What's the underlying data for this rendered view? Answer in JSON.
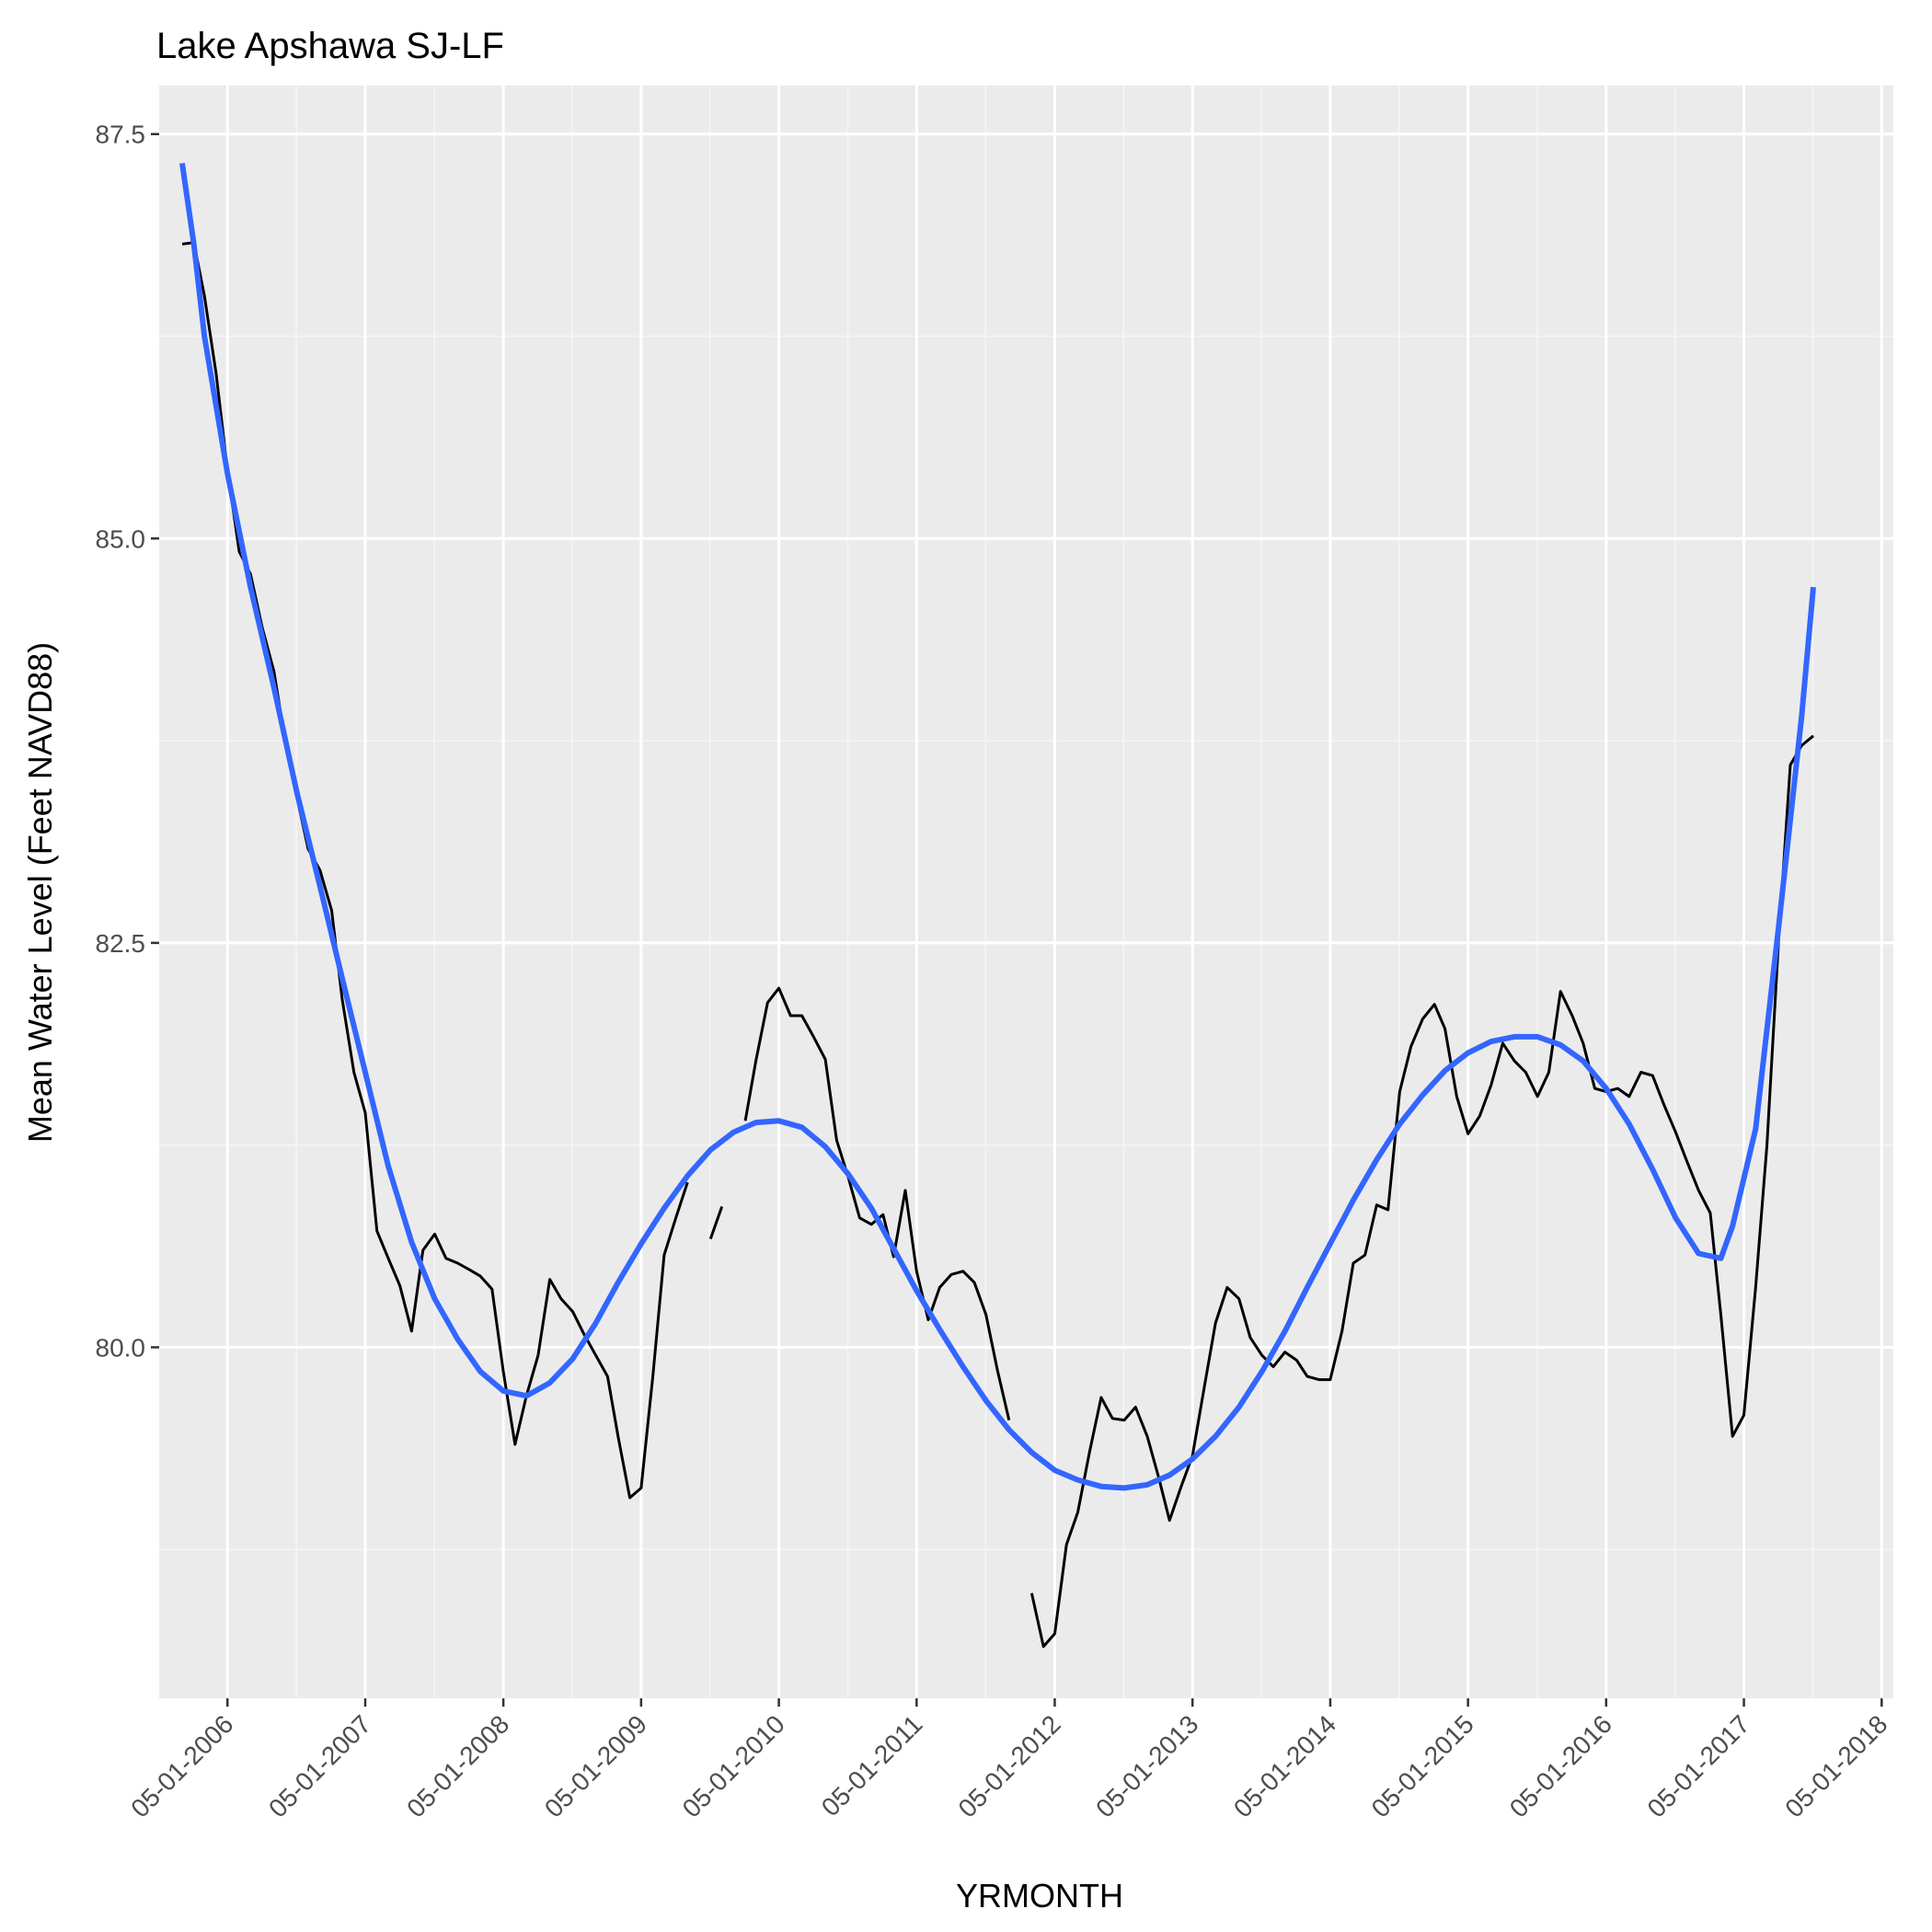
{
  "chart_data": {
    "type": "line",
    "title": "Lake Apshawa SJ-LF",
    "xlabel": "YRMONTH",
    "ylabel": "Mean Water Level (Feet NAVD88)",
    "ylim": [
      77.83,
      87.8
    ],
    "ylim_note": "",
    "yticks": [
      80.0,
      82.5,
      85.0,
      87.5
    ],
    "xlim": [
      "2005-11-01",
      "2018-06-01"
    ],
    "xticks": [
      "05-01-2006",
      "05-01-2007",
      "05-01-2008",
      "05-01-2009",
      "05-01-2010",
      "05-01-2011",
      "05-01-2012",
      "05-01-2013",
      "05-01-2014",
      "05-01-2015",
      "05-01-2016",
      "05-01-2017",
      "05-01-2018"
    ],
    "grid": true,
    "legend": "none",
    "colors": {
      "panel_background": "#ebebeb",
      "grid_major": "#ffffff",
      "grid_minor": "#f5f5f5",
      "observed_line": "#000000",
      "smooth_line": "#3366ff"
    },
    "series": [
      {
        "style": "observed",
        "segments": [
          [
            [
              "2006-01-01",
              86.82
            ],
            [
              "2006-02-01",
              86.83
            ],
            [
              "2006-03-01",
              86.5
            ],
            [
              "2006-04-01",
              86.02
            ],
            [
              "2006-05-01",
              85.42
            ],
            [
              "2006-06-01",
              84.92
            ],
            [
              "2006-07-01",
              84.78
            ],
            [
              "2006-08-01",
              84.45
            ],
            [
              "2006-09-01",
              84.18
            ],
            [
              "2006-10-01",
              83.75
            ],
            [
              "2006-11-01",
              83.4
            ],
            [
              "2006-12-01",
              83.08
            ],
            [
              "2007-01-01",
              82.95
            ],
            [
              "2007-02-01",
              82.7
            ],
            [
              "2007-03-01",
              82.15
            ],
            [
              "2007-04-01",
              81.7
            ],
            [
              "2007-05-01",
              81.45
            ],
            [
              "2007-06-01",
              80.72
            ],
            [
              "2007-07-01",
              80.55
            ],
            [
              "2007-08-01",
              80.38
            ],
            [
              "2007-09-01",
              80.1
            ],
            [
              "2007-10-01",
              80.6
            ],
            [
              "2007-11-01",
              80.7
            ],
            [
              "2007-12-01",
              80.55
            ],
            [
              "2008-01-01",
              80.52
            ],
            [
              "2008-02-01",
              80.48
            ],
            [
              "2008-03-01",
              80.44
            ],
            [
              "2008-04-01",
              80.36
            ],
            [
              "2008-05-01",
              79.85
            ],
            [
              "2008-06-01",
              79.4
            ],
            [
              "2008-07-01",
              79.7
            ],
            [
              "2008-08-01",
              79.95
            ],
            [
              "2008-09-01",
              80.42
            ],
            [
              "2008-10-01",
              80.3
            ],
            [
              "2008-11-01",
              80.22
            ],
            [
              "2008-12-01",
              80.08
            ],
            [
              "2009-01-01",
              79.95
            ],
            [
              "2009-02-01",
              79.82
            ],
            [
              "2009-03-01",
              79.45
            ],
            [
              "2009-04-01",
              79.07
            ],
            [
              "2009-05-01",
              79.13
            ],
            [
              "2009-06-01",
              79.82
            ],
            [
              "2009-07-01",
              80.57
            ],
            [
              "2009-08-01",
              80.8
            ],
            [
              "2009-09-01",
              81.02
            ]
          ],
          [
            [
              "2009-11-01",
              80.67
            ],
            [
              "2009-12-01",
              80.87
            ]
          ],
          [
            [
              "2010-02-01",
              81.4
            ],
            [
              "2010-03-01",
              81.77
            ],
            [
              "2010-04-01",
              82.13
            ],
            [
              "2010-05-01",
              82.22
            ],
            [
              "2010-06-01",
              82.05
            ],
            [
              "2010-07-01",
              82.05
            ],
            [
              "2010-08-01",
              81.92
            ],
            [
              "2010-09-01",
              81.78
            ],
            [
              "2010-10-01",
              81.28
            ],
            [
              "2010-11-01",
              81.05
            ],
            [
              "2010-12-01",
              80.8
            ],
            [
              "2011-01-01",
              80.76
            ],
            [
              "2011-02-01",
              80.82
            ],
            [
              "2011-03-01",
              80.56
            ],
            [
              "2011-04-01",
              80.97
            ],
            [
              "2011-05-01",
              80.47
            ],
            [
              "2011-06-01",
              80.17
            ],
            [
              "2011-07-01",
              80.37
            ],
            [
              "2011-08-01",
              80.45
            ],
            [
              "2011-09-01",
              80.47
            ],
            [
              "2011-10-01",
              80.4
            ],
            [
              "2011-11-01",
              80.2
            ],
            [
              "2011-12-01",
              79.86
            ],
            [
              "2012-01-01",
              79.55
            ]
          ],
          [
            [
              "2012-03-01",
              78.48
            ],
            [
              "2012-04-01",
              78.15
            ],
            [
              "2012-05-01",
              78.23
            ],
            [
              "2012-06-01",
              78.78
            ],
            [
              "2012-07-01",
              78.98
            ],
            [
              "2012-08-01",
              79.35
            ],
            [
              "2012-09-01",
              79.69
            ],
            [
              "2012-10-01",
              79.56
            ],
            [
              "2012-11-01",
              79.55
            ],
            [
              "2012-12-01",
              79.63
            ],
            [
              "2013-01-01",
              79.45
            ],
            [
              "2013-02-01",
              79.19
            ],
            [
              "2013-03-01",
              78.93
            ],
            [
              "2013-04-01",
              79.14
            ],
            [
              "2013-05-01",
              79.33
            ],
            [
              "2013-06-01",
              79.75
            ],
            [
              "2013-07-01",
              80.15
            ],
            [
              "2013-08-01",
              80.37
            ],
            [
              "2013-09-01",
              80.3
            ],
            [
              "2013-10-01",
              80.06
            ],
            [
              "2013-11-01",
              79.95
            ],
            [
              "2013-12-01",
              79.88
            ],
            [
              "2014-01-01",
              79.97
            ],
            [
              "2014-02-01",
              79.92
            ],
            [
              "2014-03-01",
              79.82
            ],
            [
              "2014-04-01",
              79.8
            ],
            [
              "2014-05-01",
              79.8
            ],
            [
              "2014-06-01",
              80.1
            ],
            [
              "2014-07-01",
              80.52
            ],
            [
              "2014-08-01",
              80.57
            ],
            [
              "2014-09-01",
              80.88
            ],
            [
              "2014-10-01",
              80.85
            ],
            [
              "2014-11-01",
              81.58
            ],
            [
              "2014-12-01",
              81.86
            ],
            [
              "2015-01-01",
              82.03
            ],
            [
              "2015-02-01",
              82.12
            ],
            [
              "2015-03-01",
              81.97
            ],
            [
              "2015-04-01",
              81.55
            ],
            [
              "2015-05-01",
              81.32
            ],
            [
              "2015-06-01",
              81.43
            ],
            [
              "2015-07-01",
              81.62
            ],
            [
              "2015-08-01",
              81.88
            ],
            [
              "2015-09-01",
              81.77
            ],
            [
              "2015-10-01",
              81.7
            ],
            [
              "2015-11-01",
              81.55
            ],
            [
              "2015-12-01",
              81.7
            ],
            [
              "2016-01-01",
              82.2
            ],
            [
              "2016-02-01",
              82.05
            ],
            [
              "2016-03-01",
              81.88
            ],
            [
              "2016-04-01",
              81.6
            ],
            [
              "2016-05-01",
              81.58
            ],
            [
              "2016-06-01",
              81.6
            ],
            [
              "2016-07-01",
              81.55
            ],
            [
              "2016-08-01",
              81.7
            ],
            [
              "2016-09-01",
              81.68
            ],
            [
              "2016-10-01",
              81.5
            ],
            [
              "2016-11-01",
              81.33
            ],
            [
              "2016-12-01",
              81.15
            ],
            [
              "2017-01-01",
              80.97
            ],
            [
              "2017-02-01",
              80.83
            ],
            [
              "2017-03-01",
              80.2
            ],
            [
              "2017-04-01",
              79.45
            ],
            [
              "2017-05-01",
              79.58
            ],
            [
              "2017-06-01",
              80.37
            ],
            [
              "2017-07-01",
              81.25
            ],
            [
              "2017-08-01",
              82.52
            ],
            [
              "2017-09-01",
              83.6
            ],
            [
              "2017-10-01",
              83.72
            ],
            [
              "2017-11-01",
              83.78
            ]
          ]
        ]
      },
      {
        "style": "smooth",
        "points": [
          [
            "2006-01-01",
            87.32
          ],
          [
            "2006-02-01",
            86.82
          ],
          [
            "2006-03-01",
            86.25
          ],
          [
            "2006-05-01",
            85.4
          ],
          [
            "2006-07-01",
            84.7
          ],
          [
            "2006-09-01",
            84.08
          ],
          [
            "2006-11-01",
            83.43
          ],
          [
            "2007-01-01",
            82.85
          ],
          [
            "2007-03-01",
            82.28
          ],
          [
            "2007-05-01",
            81.7
          ],
          [
            "2007-07-01",
            81.12
          ],
          [
            "2007-09-01",
            80.65
          ],
          [
            "2007-11-01",
            80.3
          ],
          [
            "2008-01-01",
            80.05
          ],
          [
            "2008-03-01",
            79.85
          ],
          [
            "2008-05-01",
            79.73
          ],
          [
            "2008-07-01",
            79.7
          ],
          [
            "2008-09-01",
            79.78
          ],
          [
            "2008-11-01",
            79.93
          ],
          [
            "2009-01-01",
            80.15
          ],
          [
            "2009-03-01",
            80.4
          ],
          [
            "2009-05-01",
            80.64
          ],
          [
            "2009-07-01",
            80.86
          ],
          [
            "2009-09-01",
            81.06
          ],
          [
            "2009-11-01",
            81.22
          ],
          [
            "2010-01-01",
            81.33
          ],
          [
            "2010-03-01",
            81.39
          ],
          [
            "2010-05-01",
            81.4
          ],
          [
            "2010-07-01",
            81.36
          ],
          [
            "2010-09-01",
            81.24
          ],
          [
            "2010-11-01",
            81.07
          ],
          [
            "2011-01-01",
            80.86
          ],
          [
            "2011-03-01",
            80.61
          ],
          [
            "2011-05-01",
            80.35
          ],
          [
            "2011-07-01",
            80.11
          ],
          [
            "2011-09-01",
            79.88
          ],
          [
            "2011-11-01",
            79.67
          ],
          [
            "2012-01-01",
            79.49
          ],
          [
            "2012-03-01",
            79.35
          ],
          [
            "2012-05-01",
            79.24
          ],
          [
            "2012-07-01",
            79.18
          ],
          [
            "2012-09-01",
            79.14
          ],
          [
            "2012-11-01",
            79.13
          ],
          [
            "2013-01-01",
            79.15
          ],
          [
            "2013-03-01",
            79.21
          ],
          [
            "2013-05-01",
            79.31
          ],
          [
            "2013-07-01",
            79.45
          ],
          [
            "2013-09-01",
            79.63
          ],
          [
            "2013-11-01",
            79.85
          ],
          [
            "2014-01-01",
            80.1
          ],
          [
            "2014-03-01",
            80.37
          ],
          [
            "2014-05-01",
            80.64
          ],
          [
            "2014-07-01",
            80.91
          ],
          [
            "2014-09-01",
            81.16
          ],
          [
            "2014-11-01",
            81.38
          ],
          [
            "2015-01-01",
            81.56
          ],
          [
            "2015-03-01",
            81.71
          ],
          [
            "2015-05-01",
            81.82
          ],
          [
            "2015-07-01",
            81.89
          ],
          [
            "2015-09-01",
            81.92
          ],
          [
            "2015-11-01",
            81.92
          ],
          [
            "2016-01-01",
            81.87
          ],
          [
            "2016-03-01",
            81.77
          ],
          [
            "2016-05-01",
            81.6
          ],
          [
            "2016-07-01",
            81.38
          ],
          [
            "2016-09-01",
            81.1
          ],
          [
            "2016-11-01",
            80.8
          ],
          [
            "2017-01-01",
            80.58
          ],
          [
            "2017-03-01",
            80.55
          ],
          [
            "2017-04-01",
            80.75
          ],
          [
            "2017-06-01",
            81.35
          ],
          [
            "2017-08-01",
            82.6
          ],
          [
            "2017-10-01",
            83.9
          ],
          [
            "2017-11-01",
            84.7
          ]
        ]
      }
    ]
  }
}
